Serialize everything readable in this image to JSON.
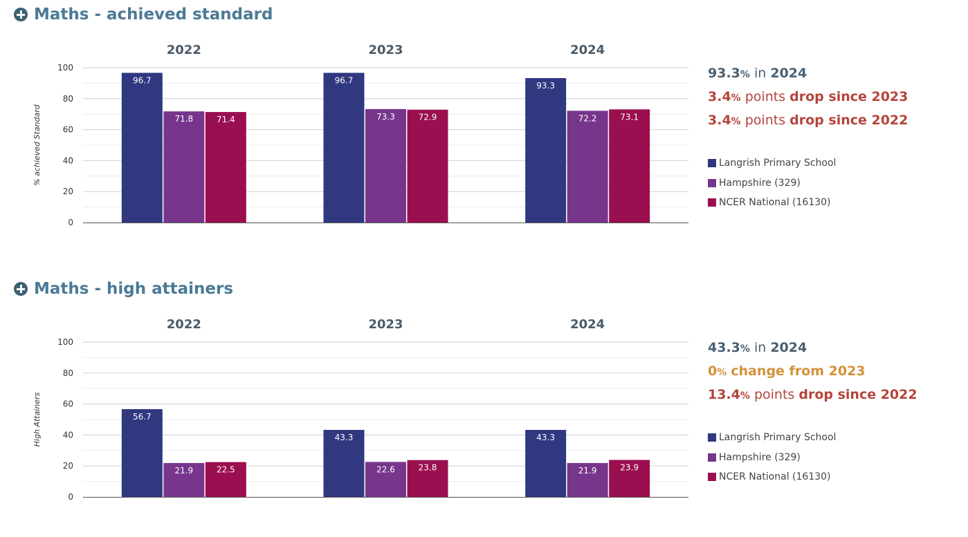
{
  "sections": [
    {
      "title": "Maths - achieved standard",
      "summary": [
        {
          "value": "93.3",
          "unit": "%",
          "mid": " in ",
          "tail": "2024",
          "color": "#4a6072"
        },
        {
          "value": "3.4",
          "unit": "%",
          "mid": " points ",
          "tail": "drop since 2023",
          "color": "#b5443c"
        },
        {
          "value": "3.4",
          "unit": "%",
          "mid": " points ",
          "tail": "drop since 2022",
          "color": "#b5443c"
        }
      ],
      "chart_data": {
        "type": "bar",
        "categories": [
          "2022",
          "2023",
          "2024"
        ],
        "ylabel": "% achieved Standard",
        "ylim": [
          0,
          100
        ],
        "yticks": [
          0,
          20,
          40,
          60,
          80,
          100
        ],
        "grid": true,
        "series": [
          {
            "name": "Langrish Primary School",
            "color": "#303880",
            "values": [
              96.7,
              96.7,
              93.3
            ]
          },
          {
            "name": "Hampshire (329)",
            "color": "#77368c",
            "values": [
              71.8,
              73.3,
              72.2
            ]
          },
          {
            "name": "NCER National (16130)",
            "color": "#9a0f50",
            "values": [
              71.4,
              72.9,
              73.1
            ]
          }
        ]
      }
    },
    {
      "title": "Maths - high attainers",
      "summary": [
        {
          "value": "43.3",
          "unit": "%",
          "mid": " in ",
          "tail": "2024",
          "color": "#4a6072"
        },
        {
          "value": "0",
          "unit": "%",
          "mid": " ",
          "tail": "change from 2023",
          "color": "#d3913a"
        },
        {
          "value": "13.4",
          "unit": "%",
          "mid": " points ",
          "tail": "drop since 2022",
          "color": "#b5443c"
        }
      ],
      "chart_data": {
        "type": "bar",
        "categories": [
          "2022",
          "2023",
          "2024"
        ],
        "ylabel": "High Attainers",
        "ylim": [
          0,
          100
        ],
        "yticks": [
          0,
          20,
          40,
          60,
          80,
          100
        ],
        "grid": true,
        "series": [
          {
            "name": "Langrish Primary School",
            "color": "#303880",
            "values": [
              56.7,
              43.3,
              43.3
            ]
          },
          {
            "name": "Hampshire (329)",
            "color": "#77368c",
            "values": [
              21.9,
              22.6,
              21.9
            ]
          },
          {
            "name": "NCER National (16130)",
            "color": "#9a0f50",
            "values": [
              22.5,
              23.8,
              23.9
            ]
          }
        ]
      }
    }
  ]
}
